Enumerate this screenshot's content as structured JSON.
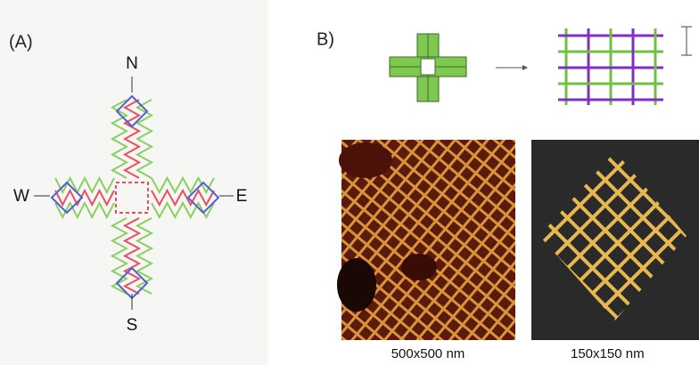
{
  "panel_a": {
    "label": "(A)",
    "directions": {
      "north": "N",
      "west": "W",
      "east": "E",
      "south": "S"
    }
  },
  "panel_b": {
    "label": "B)",
    "images": [
      {
        "caption": "500x500 nm"
      },
      {
        "caption": "150x150 nm"
      }
    ]
  }
}
